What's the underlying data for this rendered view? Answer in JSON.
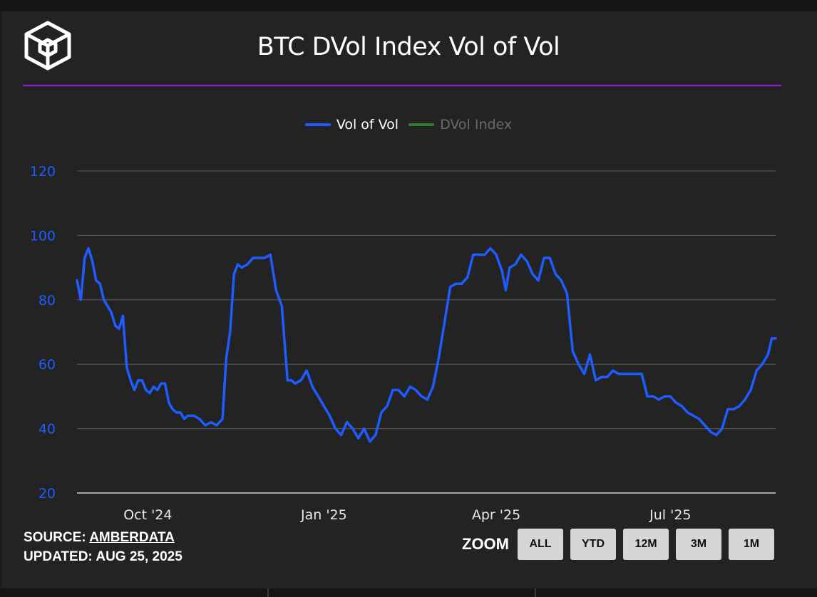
{
  "header": {
    "title": "BTC DVol Index Vol of Vol",
    "logo_icon": "cube-logo-icon"
  },
  "legend": [
    {
      "label": "Vol of Vol",
      "color": "#1f5cff",
      "active": true
    },
    {
      "label": "DVol Index",
      "color": "#2f7d32",
      "active": false
    }
  ],
  "footer": {
    "source_label": "SOURCE:",
    "source_value": "AMBERDATA",
    "updated_label": "UPDATED:",
    "updated_value": "AUG 25, 2025"
  },
  "zoom": {
    "label": "ZOOM",
    "buttons": [
      "ALL",
      "YTD",
      "12M",
      "3M",
      "1M"
    ]
  },
  "colors": {
    "series": "#1f5cff",
    "axis_text": "#1f5cff",
    "grid": "#5c5c5c",
    "accent_rule": "#8a24e0"
  },
  "chart_data": {
    "type": "line",
    "title": "BTC DVol Index Vol of Vol",
    "xlabel": "",
    "ylabel": "",
    "ylim": [
      20,
      120
    ],
    "yticks": [
      20,
      40,
      60,
      80,
      100,
      120
    ],
    "xlim": [
      "2024-08-25",
      "2025-08-25"
    ],
    "xticks": [
      {
        "date": "2024-10-01",
        "label": "Oct '24"
      },
      {
        "date": "2025-01-01",
        "label": "Jan '25"
      },
      {
        "date": "2025-04-01",
        "label": "Apr '25"
      },
      {
        "date": "2025-07-01",
        "label": "Jul '25"
      }
    ],
    "grid": true,
    "legend_position": "top-center",
    "series": [
      {
        "name": "Vol of Vol",
        "x": [
          "2024-08-25",
          "2024-08-27",
          "2024-08-29",
          "2024-08-31",
          "2024-09-02",
          "2024-09-04",
          "2024-09-06",
          "2024-09-08",
          "2024-09-10",
          "2024-09-12",
          "2024-09-14",
          "2024-09-16",
          "2024-09-18",
          "2024-09-20",
          "2024-09-22",
          "2024-09-24",
          "2024-09-26",
          "2024-09-28",
          "2024-09-30",
          "2024-10-02",
          "2024-10-04",
          "2024-10-06",
          "2024-10-08",
          "2024-10-10",
          "2024-10-12",
          "2024-10-14",
          "2024-10-16",
          "2024-10-18",
          "2024-10-20",
          "2024-10-22",
          "2024-10-25",
          "2024-10-28",
          "2024-10-31",
          "2024-11-03",
          "2024-11-06",
          "2024-11-09",
          "2024-11-11",
          "2024-11-13",
          "2024-11-15",
          "2024-11-17",
          "2024-11-19",
          "2024-11-22",
          "2024-11-25",
          "2024-11-28",
          "2024-12-01",
          "2024-12-04",
          "2024-12-07",
          "2024-12-10",
          "2024-12-13",
          "2024-12-15",
          "2024-12-17",
          "2024-12-20",
          "2024-12-23",
          "2024-12-26",
          "2024-12-29",
          "2025-01-01",
          "2025-01-04",
          "2025-01-07",
          "2025-01-10",
          "2025-01-13",
          "2025-01-16",
          "2025-01-19",
          "2025-01-22",
          "2025-01-25",
          "2025-01-28",
          "2025-01-31",
          "2025-02-03",
          "2025-02-06",
          "2025-02-09",
          "2025-02-12",
          "2025-02-15",
          "2025-02-18",
          "2025-02-21",
          "2025-02-24",
          "2025-02-27",
          "2025-03-02",
          "2025-03-05",
          "2025-03-08",
          "2025-03-11",
          "2025-03-14",
          "2025-03-17",
          "2025-03-20",
          "2025-03-23",
          "2025-03-26",
          "2025-03-29",
          "2025-04-01",
          "2025-04-04",
          "2025-04-06",
          "2025-04-08",
          "2025-04-11",
          "2025-04-14",
          "2025-04-17",
          "2025-04-20",
          "2025-04-23",
          "2025-04-26",
          "2025-04-29",
          "2025-05-02",
          "2025-05-05",
          "2025-05-08",
          "2025-05-11",
          "2025-05-14",
          "2025-05-17",
          "2025-05-20",
          "2025-05-23",
          "2025-05-26",
          "2025-05-29",
          "2025-06-01",
          "2025-06-04",
          "2025-06-07",
          "2025-06-10",
          "2025-06-13",
          "2025-06-16",
          "2025-06-19",
          "2025-06-22",
          "2025-06-25",
          "2025-06-28",
          "2025-07-01",
          "2025-07-04",
          "2025-07-07",
          "2025-07-10",
          "2025-07-13",
          "2025-07-16",
          "2025-07-19",
          "2025-07-22",
          "2025-07-25",
          "2025-07-28",
          "2025-07-31",
          "2025-08-03",
          "2025-08-06",
          "2025-08-09",
          "2025-08-12",
          "2025-08-15",
          "2025-08-18",
          "2025-08-21",
          "2025-08-23",
          "2025-08-25"
        ],
        "y": [
          86,
          80,
          93,
          96,
          92,
          86,
          85,
          80,
          78,
          76,
          72,
          71,
          75,
          59,
          55,
          52,
          55,
          55,
          52,
          51,
          53,
          52,
          54,
          54,
          48,
          46,
          45,
          45,
          43,
          44,
          44,
          43,
          41,
          42,
          41,
          43,
          62,
          70,
          88,
          91,
          90,
          91,
          93,
          93,
          93,
          94,
          83,
          78,
          55,
          55,
          54,
          55,
          58,
          53,
          50,
          47,
          44,
          40,
          38,
          42,
          40,
          37,
          40,
          36,
          38,
          45,
          47,
          52,
          52,
          50,
          53,
          52,
          50,
          49,
          53,
          62,
          73,
          84,
          85,
          85,
          87,
          94,
          94,
          94,
          96,
          94,
          89,
          83,
          90,
          91,
          94,
          92,
          88,
          86,
          93,
          93,
          88,
          86,
          82,
          64,
          60,
          57,
          63,
          55,
          56,
          56,
          58,
          57,
          57,
          57,
          57,
          57,
          50,
          50,
          49,
          50,
          50,
          48,
          47,
          45,
          44,
          43,
          41,
          39,
          38,
          40,
          46,
          46,
          47,
          49,
          52,
          58,
          60,
          63,
          68,
          68
        ]
      }
    ]
  }
}
